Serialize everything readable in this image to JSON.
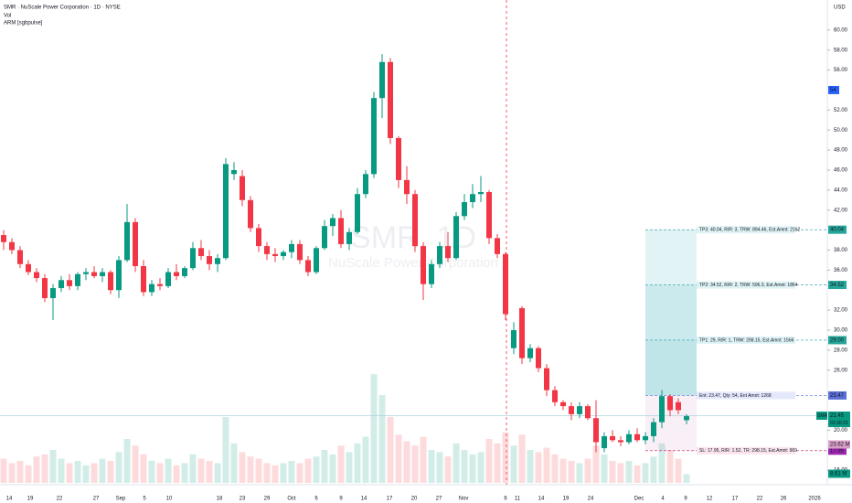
{
  "chart_data": {
    "type": "candlestick",
    "title": "SMR · NuScale Power Corporation · 1D · NYSE",
    "indicators": [
      "Vol",
      "ARM [sgbpulse]"
    ],
    "currency": "USD",
    "watermark": [
      "SMR, 1D",
      "NuScale Power Corporation"
    ],
    "up_color": "#089981",
    "down_color": "#f23645",
    "open": [
      39.5,
      38.8,
      38.0,
      36.6,
      35.8,
      35.2,
      33.2,
      34.2,
      35.0,
      34.4,
      35.6,
      35.8,
      35.4,
      35.8,
      34.0,
      37.0,
      40.8,
      36.4,
      33.8,
      34.6,
      34.4,
      35.8,
      35.4,
      36.2,
      38.2,
      37.4,
      36.6,
      37.2,
      45.6,
      45.4,
      43.0,
      40.2,
      38.4,
      37.6,
      37.4,
      37.8,
      38.6,
      37.0,
      35.8,
      38.2,
      40.4,
      41.2,
      38.6,
      39.8,
      43.6,
      45.6,
      53.2,
      56.8,
      49.2,
      45.0,
      43.6,
      38.4,
      34.6,
      36.6,
      38.4,
      37.2,
      41.4,
      42.8,
      43.6,
      43.8,
      39.2,
      37.6,
      28.2,
      32.2,
      27.2,
      28.2,
      26.2,
      24.0,
      22.8,
      22.4,
      21.6,
      22.4,
      21.2,
      18.2,
      19.4,
      19.0,
      18.8,
      19.6,
      19.0,
      19.4,
      20.8,
      23.4,
      22.8,
      21.0
    ],
    "high": [
      40.0,
      39.2,
      38.4,
      37.0,
      36.2,
      35.6,
      34.6,
      35.4,
      35.6,
      35.8,
      36.2,
      36.4,
      36.2,
      36.0,
      37.4,
      42.6,
      41.2,
      37.0,
      35.0,
      35.2,
      36.2,
      36.6,
      36.4,
      38.8,
      39.0,
      38.0,
      37.6,
      47.2,
      46.8,
      46.0,
      43.4,
      40.6,
      38.8,
      38.2,
      38.0,
      39.0,
      39.0,
      37.4,
      38.4,
      41.0,
      41.6,
      42.0,
      40.2,
      44.2,
      46.0,
      53.8,
      57.6,
      57.2,
      49.4,
      46.4,
      44.0,
      38.8,
      37.0,
      38.8,
      39.8,
      41.8,
      43.6,
      44.6,
      45.4,
      44.0,
      39.6,
      37.8,
      30.8,
      32.4,
      28.6,
      28.4,
      26.6,
      24.4,
      23.0,
      22.8,
      22.8,
      22.6,
      23.0,
      19.8,
      20.0,
      19.4,
      20.0,
      20.2,
      19.8,
      21.2,
      24.0,
      23.6,
      23.2,
      21.6
    ],
    "low": [
      38.0,
      37.6,
      36.2,
      35.5,
      34.8,
      32.8,
      31.0,
      33.8,
      34.0,
      34.0,
      35.0,
      35.2,
      34.8,
      33.6,
      33.2,
      36.8,
      35.8,
      33.4,
      33.4,
      34.0,
      34.2,
      35.0,
      35.2,
      36.0,
      37.0,
      36.0,
      35.8,
      37.0,
      45.0,
      42.4,
      39.8,
      37.8,
      37.0,
      36.8,
      37.0,
      37.2,
      36.6,
      35.4,
      35.6,
      38.0,
      39.4,
      38.2,
      38.0,
      39.6,
      43.2,
      45.2,
      51.2,
      48.6,
      44.2,
      42.6,
      37.8,
      33.0,
      34.2,
      36.2,
      36.8,
      37.0,
      41.0,
      42.2,
      42.8,
      38.6,
      37.2,
      31.0,
      27.6,
      26.6,
      26.8,
      25.8,
      23.4,
      22.4,
      22.0,
      21.0,
      21.2,
      21.0,
      17.8,
      17.8,
      18.8,
      18.4,
      18.6,
      18.8,
      18.6,
      18.8,
      20.2,
      21.4,
      21.6,
      20.6
    ],
    "close": [
      38.8,
      38.0,
      36.6,
      35.8,
      35.2,
      33.2,
      34.2,
      35.0,
      34.4,
      35.6,
      35.8,
      35.4,
      35.8,
      34.0,
      37.0,
      40.8,
      36.4,
      33.8,
      34.6,
      34.4,
      35.8,
      35.4,
      36.2,
      38.2,
      37.4,
      36.6,
      37.2,
      46.6,
      46.0,
      43.0,
      40.2,
      38.4,
      37.6,
      37.4,
      37.8,
      38.6,
      37.0,
      35.8,
      38.2,
      40.4,
      41.2,
      38.6,
      39.8,
      43.6,
      45.6,
      53.2,
      56.8,
      49.2,
      45.0,
      43.6,
      38.4,
      34.6,
      36.6,
      38.4,
      37.2,
      41.4,
      42.8,
      43.6,
      43.8,
      39.2,
      37.6,
      31.6,
      30.0,
      27.2,
      28.2,
      26.2,
      24.0,
      22.8,
      22.4,
      21.6,
      22.4,
      21.2,
      18.8,
      19.4,
      19.0,
      18.8,
      19.6,
      19.0,
      19.4,
      20.8,
      23.4,
      22.0,
      22.0,
      21.4
    ],
    "volume": [
      22,
      18,
      20,
      16,
      24,
      26,
      30,
      22,
      18,
      20,
      16,
      18,
      22,
      20,
      28,
      40,
      34,
      26,
      20,
      18,
      22,
      16,
      18,
      26,
      22,
      20,
      18,
      60,
      36,
      28,
      24,
      22,
      18,
      16,
      18,
      20,
      18,
      22,
      24,
      30,
      26,
      34,
      28,
      36,
      42,
      99,
      80,
      60,
      44,
      38,
      34,
      42,
      30,
      28,
      24,
      36,
      30,
      26,
      28,
      40,
      36,
      46,
      34,
      44,
      30,
      28,
      32,
      26,
      22,
      20,
      18,
      22,
      34,
      26,
      20,
      18,
      20,
      16,
      18,
      24,
      36,
      30,
      22,
      8
    ],
    "ylim": [
      14.55,
      63.0
    ],
    "yticks": [
      {
        "value": 60,
        "label": "60.00"
      },
      {
        "value": 58,
        "label": "58.00"
      },
      {
        "value": 56,
        "label": "56.00"
      },
      {
        "value": 52,
        "label": "52.00"
      },
      {
        "value": 50,
        "label": "50.00"
      },
      {
        "value": 48,
        "label": "48.00"
      },
      {
        "value": 46,
        "label": "46.00"
      },
      {
        "value": 44,
        "label": "44.00"
      },
      {
        "value": 42,
        "label": "42.00"
      },
      {
        "value": 38,
        "label": "38.00"
      },
      {
        "value": 36,
        "label": "36.00"
      },
      {
        "value": 32,
        "label": "32.00"
      },
      {
        "value": 30,
        "label": "30.00"
      },
      {
        "value": 28,
        "label": "28.00"
      },
      {
        "value": 26,
        "label": "26.00"
      },
      {
        "value": 20,
        "label": "20.00"
      },
      {
        "value": 16,
        "label": "16.00"
      }
    ],
    "x_labels": [
      "14",
      "19",
      "22",
      "27",
      "Sep",
      "5",
      "10",
      "18",
      "23",
      "29",
      "Oct",
      "6",
      "9",
      "14",
      "17",
      "20",
      "27",
      "Nov",
      "6",
      "11",
      "14",
      "19",
      "24",
      "Dec",
      "4",
      "9",
      "12",
      "17",
      "22",
      "26",
      "2026"
    ],
    "trade_levels": [
      {
        "label": "TP3: 40.04, R/R: 3, TRW: 894.46, Est.Amnt: 2162",
        "price": 40.04,
        "price_label": "40.04"
      },
      {
        "label": "TP2: 34.52, R/R: 2, TRW: 596.3, Est.Amnt: 1864",
        "price": 34.52,
        "price_label": "34.52"
      },
      {
        "label": "TP1: 29, R/R: 1, TRW: 298.15, Est.Amnt: 1566",
        "price": 29,
        "price_label": "29.00"
      },
      {
        "label": "Ent: 23.47, Qty: 54, Ent Amnt: 1268",
        "price": 23.47,
        "price_label": "23.47"
      },
      {
        "label": "SL: 17.95, R/R: 1.52, TR: 298.15, Est.Amnt: 969",
        "price": 17.95,
        "price_label": "17.95"
      }
    ],
    "last_price": {
      "ticker": "SMR",
      "value": 21.45,
      "label": "21.45",
      "countdown": "03:30:23"
    },
    "qty_badge": 54,
    "volume_badges": [
      "23.62 M",
      "8.61 M"
    ]
  }
}
